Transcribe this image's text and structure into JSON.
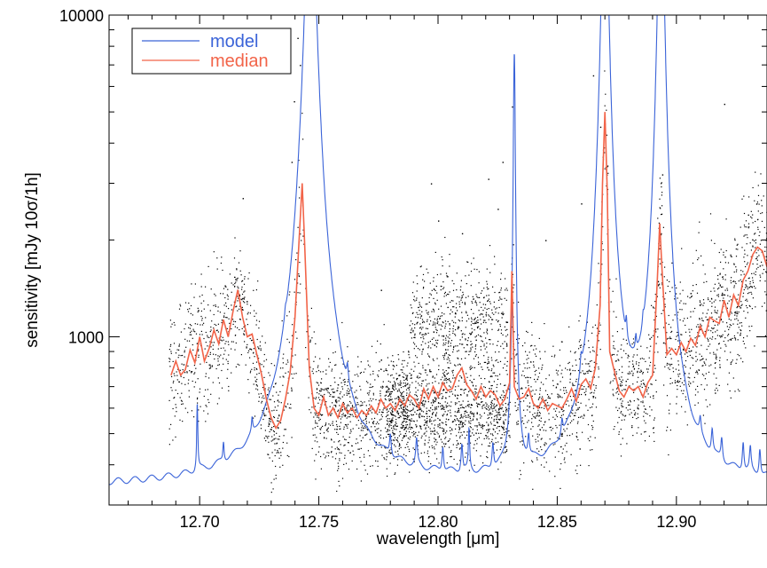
{
  "chart_data": {
    "type": "line",
    "title": "",
    "xlabel": "wavelength [μm]",
    "ylabel": "sensitivity [mJy 10σ/1h]",
    "xlim": [
      12.662,
      12.938
    ],
    "ylim": [
      300,
      10000
    ],
    "yscale": "log",
    "grid": false,
    "legend_position": "top-left",
    "x_ticks": [
      12.7,
      12.75,
      12.8,
      12.85,
      12.9
    ],
    "x_tick_labels": [
      "12.70",
      "12.75",
      "12.80",
      "12.85",
      "12.90"
    ],
    "y_ticks": [
      1000,
      10000
    ],
    "y_tick_labels": [
      "1000",
      "10000"
    ],
    "series": [
      {
        "name": "model",
        "color": "#3a63d8",
        "baseline": 340,
        "baseline_slope": 8,
        "peaks": [
          {
            "x": 12.7465,
            "y": 30000,
            "w": 0.0018
          },
          {
            "x": 12.832,
            "y": 7600,
            "w": 0.0004
          },
          {
            "x": 12.87,
            "y": 30000,
            "w": 0.0012
          },
          {
            "x": 12.8935,
            "y": 30000,
            "w": 0.0011
          },
          {
            "x": 12.699,
            "y": 580,
            "w": 0.00025
          },
          {
            "x": 12.71,
            "y": 400,
            "w": 0.0003
          },
          {
            "x": 12.722,
            "y": 395,
            "w": 0.0003
          },
          {
            "x": 12.736,
            "y": 400,
            "w": 0.0004
          },
          {
            "x": 12.762,
            "y": 430,
            "w": 0.0004
          },
          {
            "x": 12.78,
            "y": 410,
            "w": 0.0004
          },
          {
            "x": 12.791,
            "y": 420,
            "w": 0.0004
          },
          {
            "x": 12.802,
            "y": 415,
            "w": 0.0004
          },
          {
            "x": 12.81,
            "y": 425,
            "w": 0.0004
          },
          {
            "x": 12.813,
            "y": 470,
            "w": 0.0003
          },
          {
            "x": 12.823,
            "y": 420,
            "w": 0.0004
          },
          {
            "x": 12.838,
            "y": 410,
            "w": 0.0004
          },
          {
            "x": 12.852,
            "y": 400,
            "w": 0.0004
          },
          {
            "x": 12.86,
            "y": 430,
            "w": 0.0004
          },
          {
            "x": 12.879,
            "y": 480,
            "w": 0.0003
          },
          {
            "x": 12.883,
            "y": 440,
            "w": 0.0003
          },
          {
            "x": 12.886,
            "y": 420,
            "w": 0.0003
          },
          {
            "x": 12.91,
            "y": 400,
            "w": 0.0004
          },
          {
            "x": 12.915,
            "y": 420,
            "w": 0.0004
          },
          {
            "x": 12.919,
            "y": 410,
            "w": 0.0004
          },
          {
            "x": 12.928,
            "y": 430,
            "w": 0.0004
          },
          {
            "x": 12.931,
            "y": 410,
            "w": 0.0004
          },
          {
            "x": 12.935,
            "y": 420,
            "w": 0.0004
          }
        ]
      },
      {
        "name": "median",
        "color": "#f26449",
        "x": [
          12.688,
          12.69,
          12.692,
          12.694,
          12.696,
          12.698,
          12.7,
          12.702,
          12.704,
          12.706,
          12.708,
          12.71,
          12.712,
          12.714,
          12.716,
          12.718,
          12.72,
          12.722,
          12.724,
          12.726,
          12.728,
          12.73,
          12.732,
          12.734,
          12.736,
          12.738,
          12.74,
          12.742,
          12.743,
          12.744,
          12.746,
          12.748,
          12.75,
          12.752,
          12.754,
          12.756,
          12.758,
          12.76,
          12.762,
          12.764,
          12.766,
          12.768,
          12.77,
          12.772,
          12.774,
          12.776,
          12.778,
          12.78,
          12.782,
          12.784,
          12.786,
          12.788,
          12.79,
          12.792,
          12.794,
          12.796,
          12.798,
          12.8,
          12.802,
          12.804,
          12.806,
          12.808,
          12.81,
          12.812,
          12.814,
          12.816,
          12.818,
          12.82,
          12.822,
          12.824,
          12.826,
          12.828,
          12.83,
          12.831,
          12.832,
          12.834,
          12.836,
          12.838,
          12.84,
          12.842,
          12.844,
          12.846,
          12.848,
          12.85,
          12.852,
          12.854,
          12.856,
          12.858,
          12.86,
          12.862,
          12.864,
          12.866,
          12.868,
          12.869,
          12.87,
          12.871,
          12.872,
          12.874,
          12.876,
          12.878,
          12.88,
          12.882,
          12.884,
          12.886,
          12.888,
          12.89,
          12.892,
          12.893,
          12.894,
          12.896,
          12.898,
          12.9,
          12.902,
          12.904,
          12.906,
          12.908,
          12.91,
          12.912,
          12.914,
          12.916,
          12.918,
          12.92,
          12.922,
          12.924,
          12.926,
          12.928,
          12.93,
          12.932,
          12.934,
          12.936,
          12.938
        ],
        "values": [
          760,
          840,
          760,
          790,
          910,
          830,
          1000,
          840,
          920,
          1050,
          950,
          1130,
          1000,
          1200,
          1400,
          1150,
          1000,
          1020,
          880,
          760,
          640,
          560,
          520,
          550,
          640,
          780,
          1150,
          2200,
          3000,
          2000,
          800,
          600,
          570,
          650,
          570,
          600,
          560,
          620,
          580,
          600,
          560,
          590,
          570,
          610,
          580,
          640,
          600,
          620,
          590,
          640,
          610,
          660,
          640,
          600,
          690,
          640,
          700,
          650,
          720,
          680,
          690,
          760,
          800,
          710,
          680,
          640,
          700,
          650,
          680,
          660,
          610,
          640,
          720,
          1600,
          700,
          640,
          650,
          690,
          620,
          600,
          640,
          590,
          620,
          610,
          600,
          640,
          690,
          630,
          710,
          740,
          690,
          800,
          1250,
          3000,
          5000,
          2800,
          900,
          780,
          680,
          650,
          700,
          680,
          700,
          650,
          720,
          760,
          1500,
          2250,
          1600,
          880,
          920,
          880,
          960,
          900,
          990,
          940,
          1080,
          1000,
          1150,
          1120,
          1100,
          1300,
          1150,
          1350,
          1250,
          1500,
          1600,
          1800,
          1900,
          1850,
          1650
        ]
      },
      {
        "name": "",
        "type": "scatter",
        "color": "#000000",
        "clusters": [
          {
            "x": [
              12.687,
              12.734
            ],
            "y_center_from_median": true,
            "scatter": 0.1,
            "n": 650
          },
          {
            "x": [
              12.734,
              12.748
            ],
            "y_center_from_median": true,
            "scatter": 0.12,
            "n": 120
          },
          {
            "x": [
              12.748,
              12.788
            ],
            "y_center_from_median": true,
            "scatter": 0.09,
            "n": 700
          },
          {
            "x": [
              12.778,
              12.83
            ],
            "y_center": 580,
            "scatter": 0.07,
            "n": 1100
          },
          {
            "x": [
              12.788,
              12.829
            ],
            "y_center": 1100,
            "scatter": 0.09,
            "n": 650
          },
          {
            "x": [
              12.83,
              12.89
            ],
            "y_center_from_median": true,
            "scatter": 0.1,
            "n": 850
          },
          {
            "x": [
              12.89,
              12.938
            ],
            "y_center_from_median": true,
            "scatter": 0.12,
            "n": 800
          }
        ],
        "outliers": [
          [
            12.7385,
            3500
          ],
          [
            12.7395,
            5400
          ],
          [
            12.741,
            8500
          ],
          [
            12.742,
            7000
          ],
          [
            12.718,
            2700
          ],
          [
            12.8,
            2300
          ],
          [
            12.797,
            3000
          ],
          [
            12.81,
            2100
          ],
          [
            12.821,
            3100
          ],
          [
            12.825,
            2500
          ],
          [
            12.827,
            3500
          ],
          [
            12.831,
            5200
          ],
          [
            12.865,
            6500
          ],
          [
            12.868,
            4500
          ],
          [
            12.894,
            3200
          ],
          [
            12.92,
            5300
          ],
          [
            12.86,
            2600
          ],
          [
            12.845,
            2000
          ],
          [
            12.776,
            1400
          ],
          [
            12.93,
            2400
          ]
        ]
      }
    ]
  }
}
